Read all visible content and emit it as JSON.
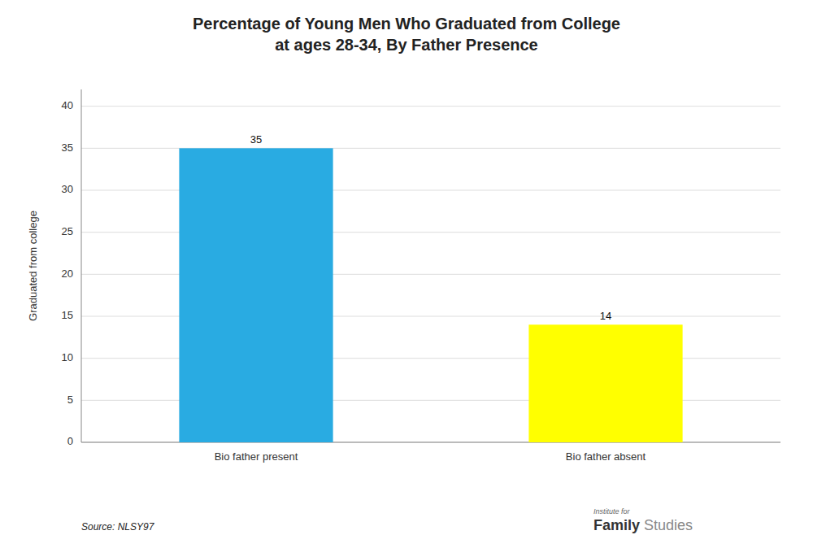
{
  "chart_data": {
    "type": "bar",
    "title": "Percentage of Young Men Who Graduated from College",
    "subtitle": "at ages 28-34, By Father Presence",
    "ylabel": "Graduated from college",
    "categories": [
      "Bio father present",
      "Bio father absent"
    ],
    "values": [
      35,
      14
    ],
    "colors": [
      "#29ABE2",
      "#FFFF00"
    ],
    "ylim": [
      0,
      42
    ],
    "yticks": [
      0,
      5,
      10,
      15,
      20,
      25,
      30,
      35,
      40
    ],
    "grid": true,
    "data_labels": true,
    "annotations": [
      "Source: NLSY97",
      "Institute for",
      "Family",
      "Studies"
    ]
  }
}
